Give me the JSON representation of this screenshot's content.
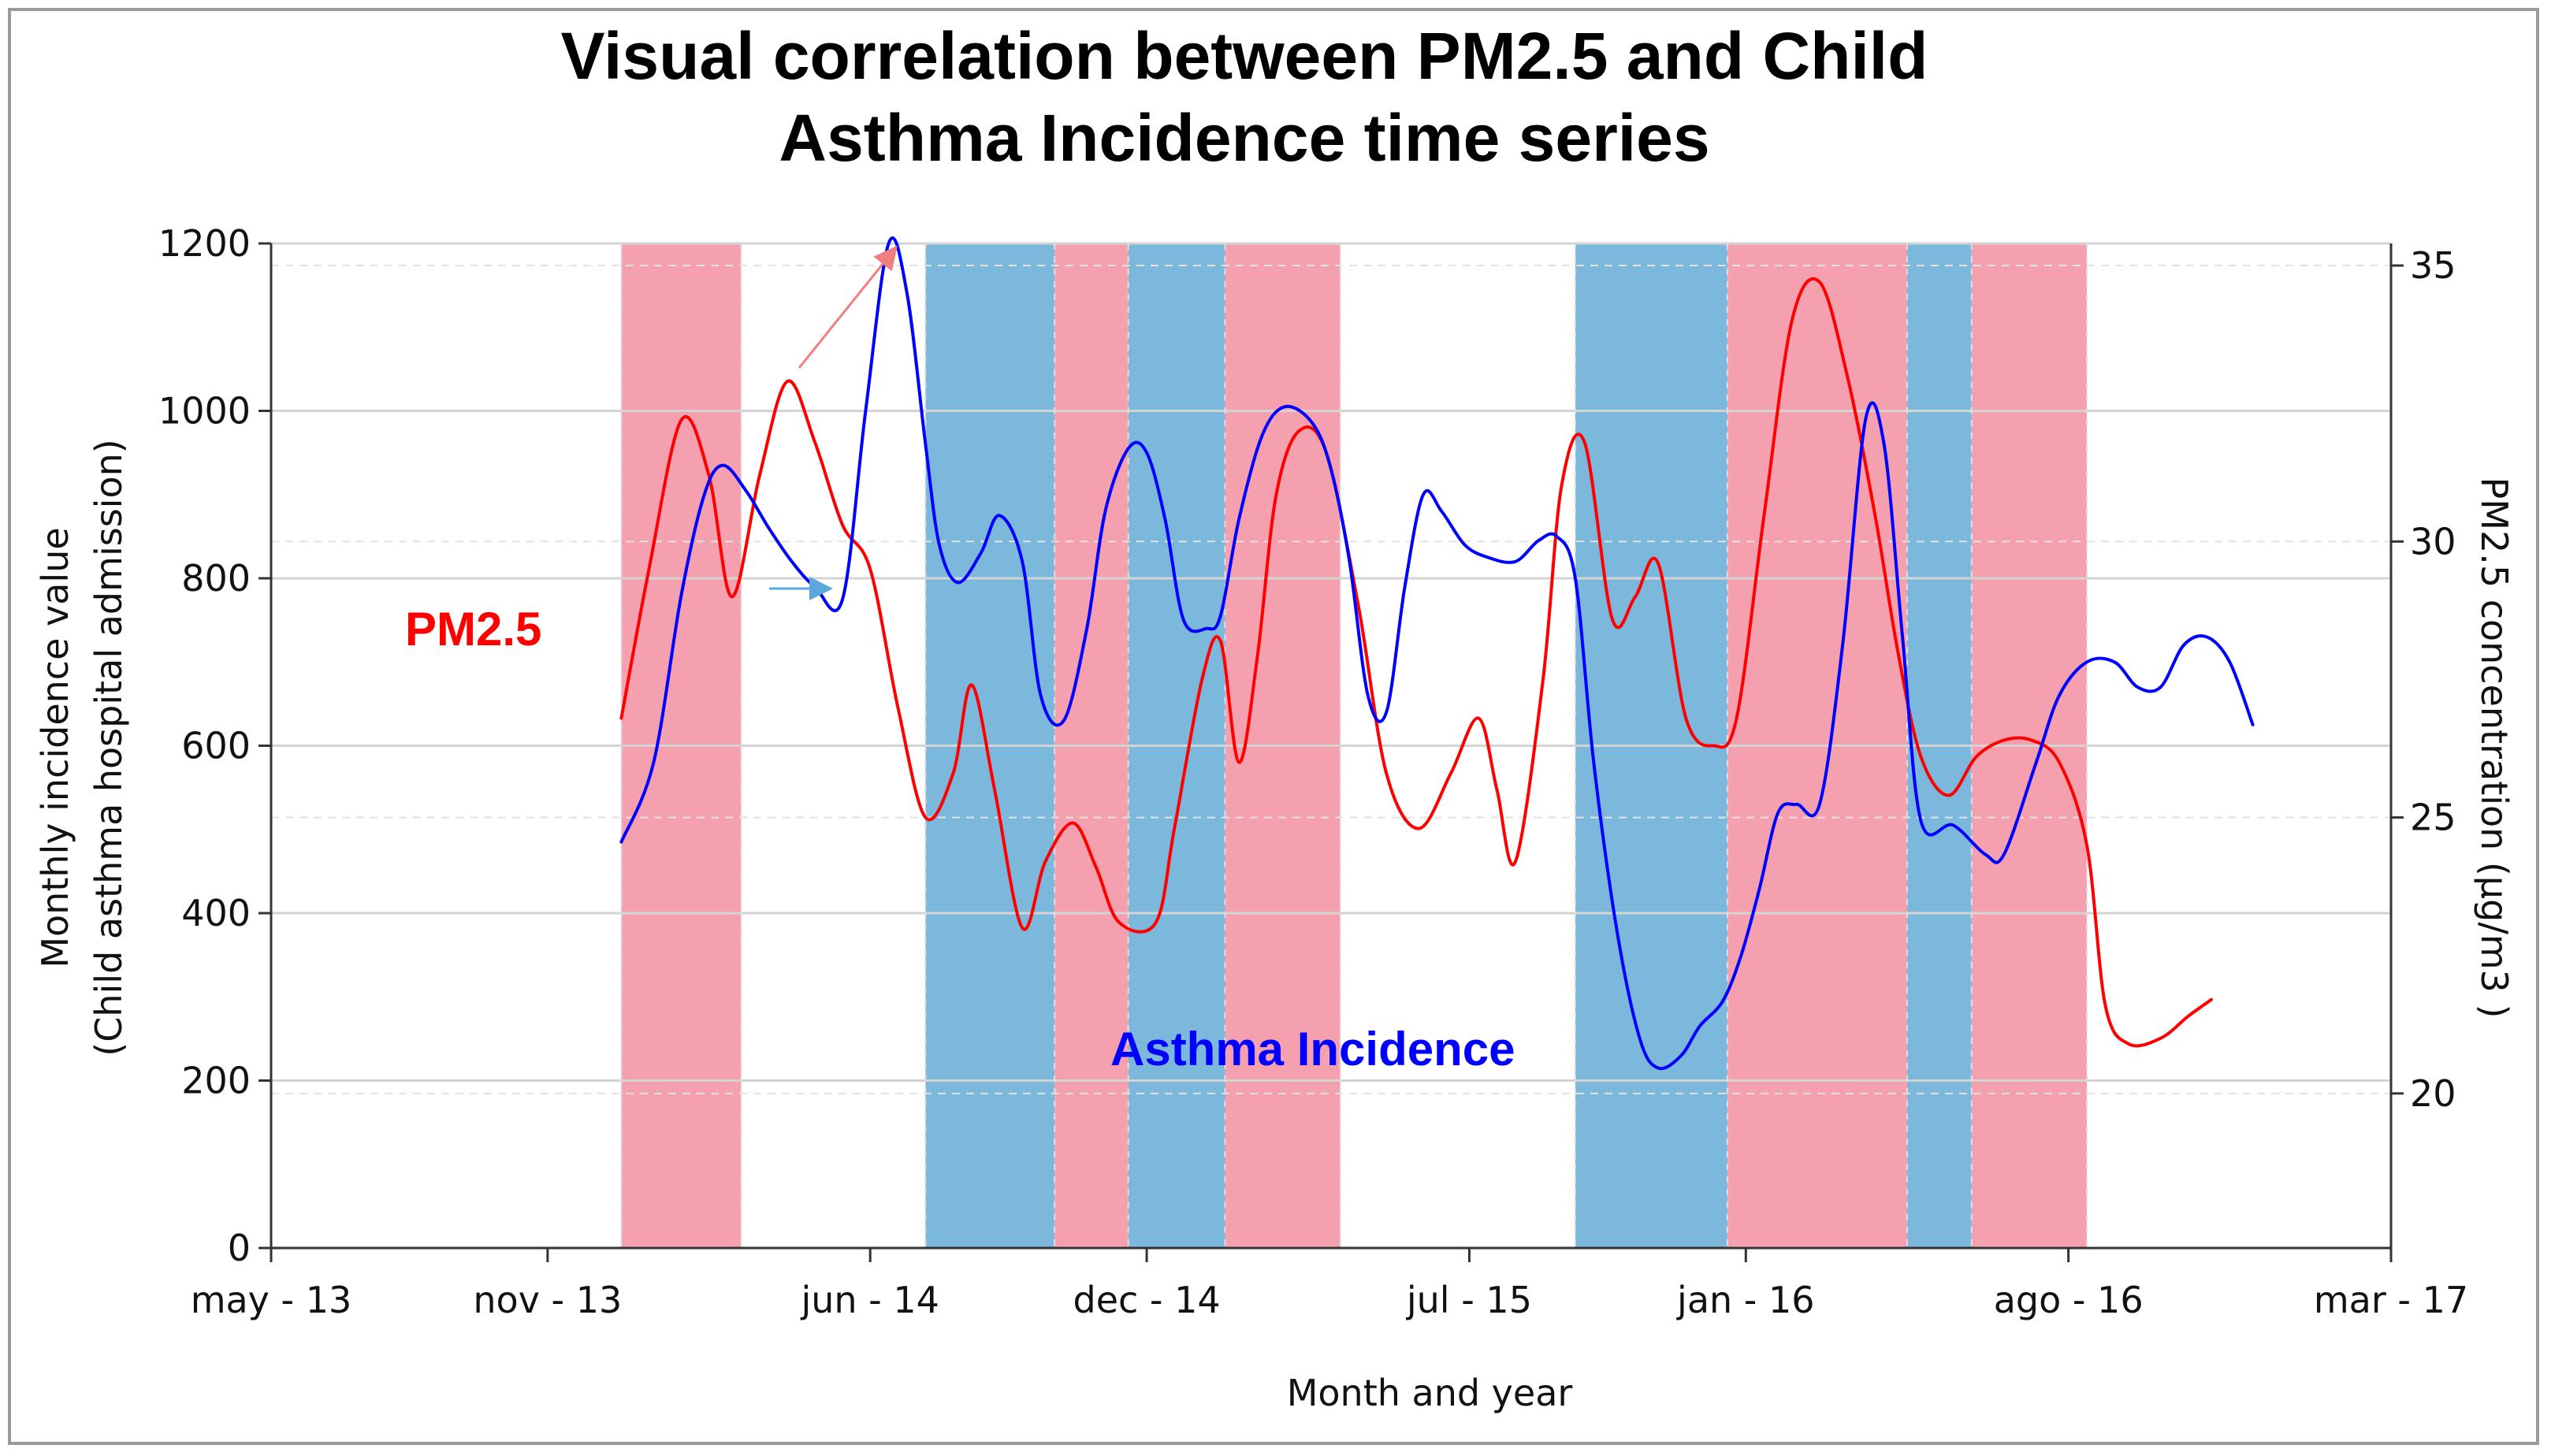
{
  "chart_data": {
    "type": "line",
    "title_line1": "Visual correlation between PM2.5 and Child",
    "title_line2": "Asthma Incidence time series",
    "xlabel": "Month and year",
    "ylabel_left_line1": "Monthly incidence value",
    "ylabel_left_line2": "(Child asthma hospital admission)",
    "ylabel_right": "PM2.5 concentration (µg/m3 )",
    "x_tick_labels": [
      "may - 13",
      "nov - 13",
      "jun - 14",
      "dec - 14",
      "jul - 15",
      "jan - 16",
      "ago - 16",
      "mar - 17"
    ],
    "x_tick_months": [
      0,
      6,
      13,
      19,
      26,
      32,
      39,
      46
    ],
    "xlim_months": [
      0,
      46
    ],
    "x_origin": "2013-05",
    "y_left_ticks": [
      "0",
      "200",
      "400",
      "600",
      "800",
      "1000",
      "1200"
    ],
    "y_left_lim": [
      0,
      1200
    ],
    "y_right_ticks": [
      "20",
      "25",
      "30",
      "35"
    ],
    "y_right_lim": [
      17.2,
      35.4
    ],
    "grid": "horizontal",
    "shaded_periods": [
      {
        "color": "#f4a0ae",
        "start": 7.6,
        "end": 10.2
      },
      {
        "color": "#7cb8dc",
        "start": 14.2,
        "end": 17.0
      },
      {
        "color": "#f4a0ae",
        "start": 17.0,
        "end": 18.6
      },
      {
        "color": "#7cb8dc",
        "start": 18.6,
        "end": 20.7
      },
      {
        "color": "#f4a0ae",
        "start": 20.7,
        "end": 23.2
      },
      {
        "color": "#7cb8dc",
        "start": 28.3,
        "end": 31.6
      },
      {
        "color": "#f4a0ae",
        "start": 31.6,
        "end": 35.5
      },
      {
        "color": "#7cb8dc",
        "start": 35.5,
        "end": 36.9
      },
      {
        "color": "#f4a0ae",
        "start": 36.9,
        "end": 39.4
      }
    ],
    "series": [
      {
        "name": "PM2.5",
        "axis": "right",
        "color": "#ff0000",
        "points": [
          [
            7.6,
            26.8
          ],
          [
            8.2,
            29.5
          ],
          [
            8.9,
            32.2
          ],
          [
            9.5,
            31.2
          ],
          [
            10.0,
            29.0
          ],
          [
            10.6,
            31.2
          ],
          [
            11.2,
            32.9
          ],
          [
            11.8,
            31.8
          ],
          [
            12.4,
            30.3
          ],
          [
            13.0,
            29.5
          ],
          [
            13.6,
            27.0
          ],
          [
            14.2,
            25.0
          ],
          [
            14.8,
            25.8
          ],
          [
            15.2,
            27.4
          ],
          [
            15.7,
            25.5
          ],
          [
            16.3,
            23.0
          ],
          [
            16.8,
            24.2
          ],
          [
            17.4,
            24.9
          ],
          [
            17.9,
            24.1
          ],
          [
            18.4,
            23.1
          ],
          [
            19.2,
            23.1
          ],
          [
            19.6,
            24.8
          ],
          [
            20.2,
            27.5
          ],
          [
            20.6,
            28.2
          ],
          [
            21.0,
            26.0
          ],
          [
            21.4,
            27.9
          ],
          [
            21.8,
            30.8
          ],
          [
            22.3,
            32.0
          ],
          [
            22.9,
            31.6
          ],
          [
            23.6,
            28.8
          ],
          [
            24.2,
            25.8
          ],
          [
            24.9,
            24.8
          ],
          [
            25.6,
            25.8
          ],
          [
            26.2,
            26.8
          ],
          [
            26.6,
            25.5
          ],
          [
            27.0,
            24.2
          ],
          [
            27.6,
            27.5
          ],
          [
            28.0,
            31.0
          ],
          [
            28.5,
            31.8
          ],
          [
            29.1,
            28.6
          ],
          [
            29.6,
            29.0
          ],
          [
            30.1,
            29.6
          ],
          [
            30.7,
            26.8
          ],
          [
            31.3,
            26.3
          ],
          [
            31.8,
            26.8
          ],
          [
            32.4,
            30.5
          ],
          [
            33.0,
            34.0
          ],
          [
            33.6,
            34.7
          ],
          [
            34.2,
            33.0
          ],
          [
            34.8,
            30.5
          ],
          [
            35.3,
            28.0
          ],
          [
            35.8,
            26.1
          ],
          [
            36.4,
            25.4
          ],
          [
            37.0,
            26.1
          ],
          [
            37.6,
            26.4
          ],
          [
            38.2,
            26.4
          ],
          [
            38.8,
            26.0
          ],
          [
            39.4,
            24.5
          ],
          [
            39.8,
            21.6
          ],
          [
            40.3,
            20.9
          ],
          [
            41.0,
            21.0
          ],
          [
            41.6,
            21.4
          ],
          [
            42.1,
            21.7
          ]
        ]
      },
      {
        "name": "Asthma Incidence",
        "axis": "left",
        "color": "#0000ff",
        "points": [
          [
            7.6,
            485
          ],
          [
            8.3,
            580
          ],
          [
            8.9,
            780
          ],
          [
            9.4,
            900
          ],
          [
            9.8,
            935
          ],
          [
            10.3,
            905
          ],
          [
            10.8,
            860
          ],
          [
            11.3,
            820
          ],
          [
            11.8,
            790
          ],
          [
            12.4,
            775
          ],
          [
            12.9,
            1000
          ],
          [
            13.4,
            1200
          ],
          [
            13.8,
            1140
          ],
          [
            14.2,
            960
          ],
          [
            14.5,
            840
          ],
          [
            14.9,
            795
          ],
          [
            15.4,
            830
          ],
          [
            15.8,
            875
          ],
          [
            16.3,
            820
          ],
          [
            16.7,
            660
          ],
          [
            17.2,
            630
          ],
          [
            17.7,
            740
          ],
          [
            18.1,
            880
          ],
          [
            18.6,
            955
          ],
          [
            19.0,
            950
          ],
          [
            19.4,
            870
          ],
          [
            19.8,
            750
          ],
          [
            20.3,
            740
          ],
          [
            20.6,
            755
          ],
          [
            21.0,
            870
          ],
          [
            21.5,
            970
          ],
          [
            22.0,
            1005
          ],
          [
            22.6,
            985
          ],
          [
            23.0,
            930
          ],
          [
            23.4,
            820
          ],
          [
            23.8,
            660
          ],
          [
            24.2,
            640
          ],
          [
            24.6,
            790
          ],
          [
            25.0,
            900
          ],
          [
            25.4,
            880
          ],
          [
            25.9,
            840
          ],
          [
            26.4,
            825
          ],
          [
            27.0,
            820
          ],
          [
            27.5,
            845
          ],
          [
            27.9,
            850
          ],
          [
            28.3,
            800
          ],
          [
            28.7,
            580
          ],
          [
            29.2,
            380
          ],
          [
            29.7,
            250
          ],
          [
            30.1,
            215
          ],
          [
            30.6,
            230
          ],
          [
            31.0,
            265
          ],
          [
            31.5,
            295
          ],
          [
            31.9,
            350
          ],
          [
            32.3,
            430
          ],
          [
            32.7,
            520
          ],
          [
            33.1,
            530
          ],
          [
            33.6,
            530
          ],
          [
            34.1,
            720
          ],
          [
            34.6,
            990
          ],
          [
            35.0,
            960
          ],
          [
            35.4,
            730
          ],
          [
            35.8,
            510
          ],
          [
            36.5,
            505
          ],
          [
            37.2,
            470
          ],
          [
            37.6,
            470
          ],
          [
            38.3,
            580
          ],
          [
            38.8,
            660
          ],
          [
            39.4,
            700
          ],
          [
            40.0,
            700
          ],
          [
            40.5,
            670
          ],
          [
            41.0,
            670
          ],
          [
            41.5,
            720
          ],
          [
            42.0,
            730
          ],
          [
            42.5,
            700
          ],
          [
            43.0,
            625
          ]
        ]
      }
    ],
    "annotations": [
      {
        "text": "PM2.5",
        "color": "#ff0000"
      },
      {
        "text": "Asthma Incidence",
        "color": "#0000ff"
      }
    ]
  }
}
